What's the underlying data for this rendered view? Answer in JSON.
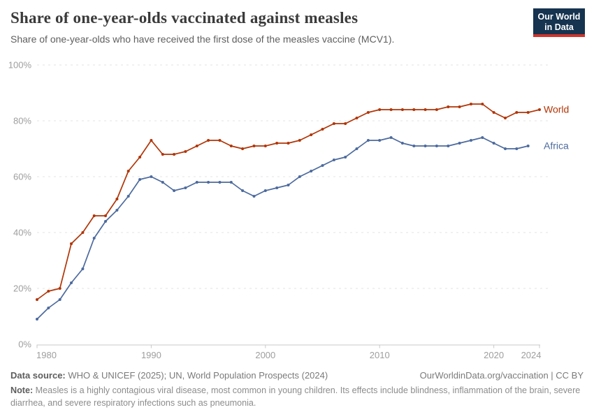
{
  "header": {
    "title": "Share of one-year-olds vaccinated against measles",
    "subtitle": "Share of one-year-olds who have received the first dose of the measles vaccine (MCV1)."
  },
  "logo": {
    "line1": "Our World",
    "line2": "in Data",
    "bg_color": "#16334F",
    "bar_color": "#CF342B",
    "text_color": "#FFFFFF"
  },
  "chart_data": {
    "type": "line",
    "title": "Share of one-year-olds vaccinated against measles",
    "subtitle": "Share of one-year-olds who have received the first dose of the measles vaccine (MCV1).",
    "xlabel": "",
    "ylabel": "",
    "xlim": [
      1980,
      2024
    ],
    "ylim": [
      0,
      100
    ],
    "yticks": [
      0,
      20,
      40,
      60,
      80,
      100
    ],
    "ytick_labels": [
      "0%",
      "20%",
      "40%",
      "60%",
      "80%",
      "100%"
    ],
    "xticks": [
      1980,
      1990,
      2000,
      2010,
      2020,
      2024
    ],
    "grid": "horizontal-dashed",
    "legend_position": "line-end-labels",
    "series": [
      {
        "name": "World",
        "color": "#B13507",
        "years": [
          1980,
          1981,
          1982,
          1983,
          1984,
          1985,
          1986,
          1987,
          1988,
          1989,
          1990,
          1991,
          1992,
          1993,
          1994,
          1995,
          1996,
          1997,
          1998,
          1999,
          2000,
          2001,
          2002,
          2003,
          2004,
          2005,
          2006,
          2007,
          2008,
          2009,
          2010,
          2011,
          2012,
          2013,
          2014,
          2015,
          2016,
          2017,
          2018,
          2019,
          2020,
          2021,
          2022,
          2023,
          2024
        ],
        "values": [
          16,
          19,
          20,
          36,
          40,
          46,
          46,
          52,
          62,
          67,
          73,
          68,
          68,
          69,
          71,
          73,
          73,
          71,
          70,
          71,
          71,
          72,
          72,
          73,
          75,
          77,
          79,
          79,
          81,
          83,
          84,
          84,
          84,
          84,
          84,
          84,
          85,
          85,
          86,
          86,
          83,
          81,
          83,
          83,
          84
        ]
      },
      {
        "name": "Africa",
        "color": "#4C6A9E",
        "years": [
          1980,
          1981,
          1982,
          1983,
          1984,
          1985,
          1986,
          1987,
          1988,
          1989,
          1990,
          1991,
          1992,
          1993,
          1994,
          1995,
          1996,
          1997,
          1998,
          1999,
          2000,
          2001,
          2002,
          2003,
          2004,
          2005,
          2006,
          2007,
          2008,
          2009,
          2010,
          2011,
          2012,
          2013,
          2014,
          2015,
          2016,
          2017,
          2018,
          2019,
          2020,
          2021,
          2022,
          2023
        ],
        "values": [
          9,
          13,
          16,
          22,
          27,
          38,
          44,
          48,
          53,
          59,
          60,
          58,
          55,
          56,
          58,
          58,
          58,
          58,
          55,
          53,
          55,
          56,
          57,
          60,
          62,
          64,
          66,
          67,
          70,
          73,
          73,
          74,
          72,
          71,
          71,
          71,
          71,
          72,
          73,
          74,
          72,
          70,
          70,
          71
        ]
      }
    ]
  },
  "axis_colors": {
    "tick_label": "#9E9E9E",
    "gridline": "#E3E3E3",
    "axis_line": "#C9C9C9"
  },
  "footer": {
    "datasource_label": "Data source:",
    "datasource_text": " WHO & UNICEF (2025); UN, World Population Prospects (2024)",
    "link_text": "OurWorldinData.org/vaccination | CC BY",
    "note_label": "Note:",
    "note_text": " Measles is a highly contagious viral disease, most common in young children. Its effects include blindness, inflammation of the brain, severe diarrhea, and severe respiratory infections such as pneumonia."
  }
}
